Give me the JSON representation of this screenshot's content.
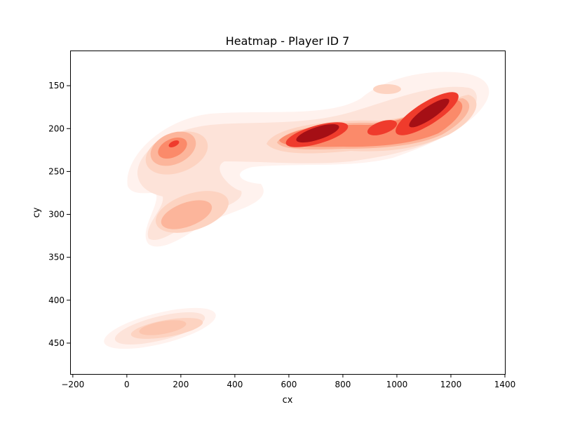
{
  "chart_data": {
    "type": "heatmap",
    "title": "Heatmap - Player ID 7",
    "xlabel": "cx",
    "ylabel": "cy",
    "xlim": [
      -210,
      1400
    ],
    "ylim": [
      486,
      109
    ],
    "y_inverted": true,
    "xticks": [
      -200,
      0,
      200,
      400,
      600,
      800,
      1000,
      1200,
      1400
    ],
    "yticks": [
      150,
      200,
      250,
      300,
      350,
      400,
      450
    ],
    "colormap": "Reds",
    "grid": false,
    "density_centers": [
      {
        "cx": 1150,
        "cy": 185,
        "level": 1.0
      },
      {
        "cx": 720,
        "cy": 207,
        "level": 1.0
      },
      {
        "cx": 1010,
        "cy": 200,
        "level": 0.6
      },
      {
        "cx": 900,
        "cy": 202,
        "level": 0.4
      },
      {
        "cx": 200,
        "cy": 222,
        "level": 0.85
      },
      {
        "cx": 280,
        "cy": 300,
        "level": 0.45
      },
      {
        "cx": 120,
        "cy": 443,
        "level": 0.3
      },
      {
        "cx": 1000,
        "cy": 152,
        "level": 0.2
      }
    ]
  }
}
